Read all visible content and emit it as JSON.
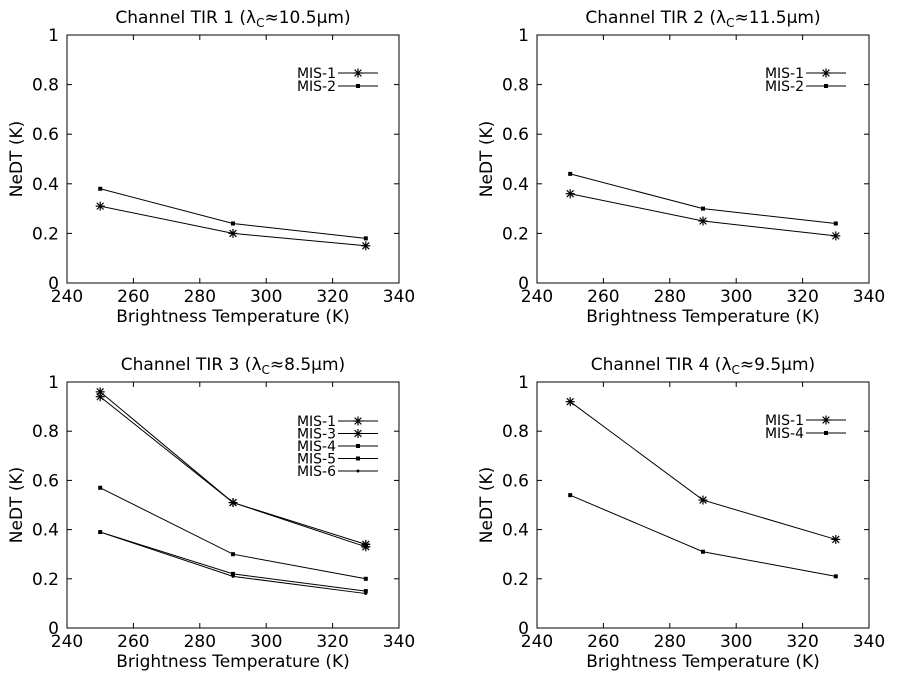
{
  "chart_data": [
    {
      "type": "line",
      "title": {
        "pre": "Channel TIR 1 (λ",
        "sub": "C",
        "post": "≈10.5µm)"
      },
      "xlabel": "Brightness Temperature (K)",
      "ylabel": "NeDT (K)",
      "xlim": [
        240,
        340
      ],
      "ylim": [
        0,
        1
      ],
      "xticks": [
        "240",
        "260",
        "280",
        "300",
        "320",
        "340"
      ],
      "yticks": [
        "0",
        "0.2",
        "0.4",
        "0.6",
        "0.8",
        "1"
      ],
      "legend_position": "top-right",
      "x": [
        250,
        290,
        330
      ],
      "series": [
        {
          "name": "MIS-1",
          "marker": "star",
          "values": [
            0.31,
            0.2,
            0.15
          ]
        },
        {
          "name": "MIS-2",
          "marker": "square",
          "values": [
            0.38,
            0.24,
            0.18
          ]
        }
      ]
    },
    {
      "type": "line",
      "title": {
        "pre": "Channel TIR 2 (λ",
        "sub": "C",
        "post": "≈11.5µm)"
      },
      "xlabel": "Brightness Temperature (K)",
      "ylabel": "NeDT (K)",
      "xlim": [
        240,
        340
      ],
      "ylim": [
        0,
        1
      ],
      "xticks": [
        "240",
        "260",
        "280",
        "300",
        "320",
        "340"
      ],
      "yticks": [
        "0",
        "0.2",
        "0.4",
        "0.6",
        "0.8",
        "1"
      ],
      "legend_position": "top-right",
      "x": [
        250,
        290,
        330
      ],
      "series": [
        {
          "name": "MIS-1",
          "marker": "star",
          "values": [
            0.36,
            0.25,
            0.19
          ]
        },
        {
          "name": "MIS-2",
          "marker": "square",
          "values": [
            0.44,
            0.3,
            0.24
          ]
        }
      ]
    },
    {
      "type": "line",
      "title": {
        "pre": "Channel TIR 3 (λ",
        "sub": "C",
        "post": "≈8.5µm)"
      },
      "xlabel": "Brightness Temperature (K)",
      "ylabel": "NeDT (K)",
      "xlim": [
        240,
        340
      ],
      "ylim": [
        0,
        1
      ],
      "xticks": [
        "240",
        "260",
        "280",
        "300",
        "320",
        "340"
      ],
      "yticks": [
        "0",
        "0.2",
        "0.4",
        "0.6",
        "0.8",
        "1"
      ],
      "legend_position": "top-right",
      "x": [
        250,
        290,
        330
      ],
      "series": [
        {
          "name": "MIS-1",
          "marker": "star",
          "values": [
            0.96,
            0.51,
            0.34
          ]
        },
        {
          "name": "MIS-3",
          "marker": "star",
          "values": [
            0.94,
            0.51,
            0.33
          ]
        },
        {
          "name": "MIS-4",
          "marker": "square",
          "values": [
            0.57,
            0.3,
            0.2
          ]
        },
        {
          "name": "MIS-5",
          "marker": "square",
          "values": [
            0.39,
            0.22,
            0.15
          ]
        },
        {
          "name": "MIS-6",
          "marker": "dot",
          "values": [
            0.39,
            0.21,
            0.14
          ]
        }
      ]
    },
    {
      "type": "line",
      "title": {
        "pre": "Channel TIR 4 (λ",
        "sub": "C",
        "post": "≈9.5µm)"
      },
      "xlabel": "Brightness Temperature (K)",
      "ylabel": "NeDT (K)",
      "xlim": [
        240,
        340
      ],
      "ylim": [
        0,
        1
      ],
      "xticks": [
        "240",
        "260",
        "280",
        "300",
        "320",
        "340"
      ],
      "yticks": [
        "0",
        "0.2",
        "0.4",
        "0.6",
        "0.8",
        "1"
      ],
      "legend_position": "top-right",
      "x": [
        250,
        290,
        330
      ],
      "series": [
        {
          "name": "MIS-1",
          "marker": "star",
          "values": [
            0.92,
            0.52,
            0.36
          ]
        },
        {
          "name": "MIS-4",
          "marker": "square",
          "values": [
            0.54,
            0.31,
            0.21
          ]
        }
      ]
    }
  ]
}
